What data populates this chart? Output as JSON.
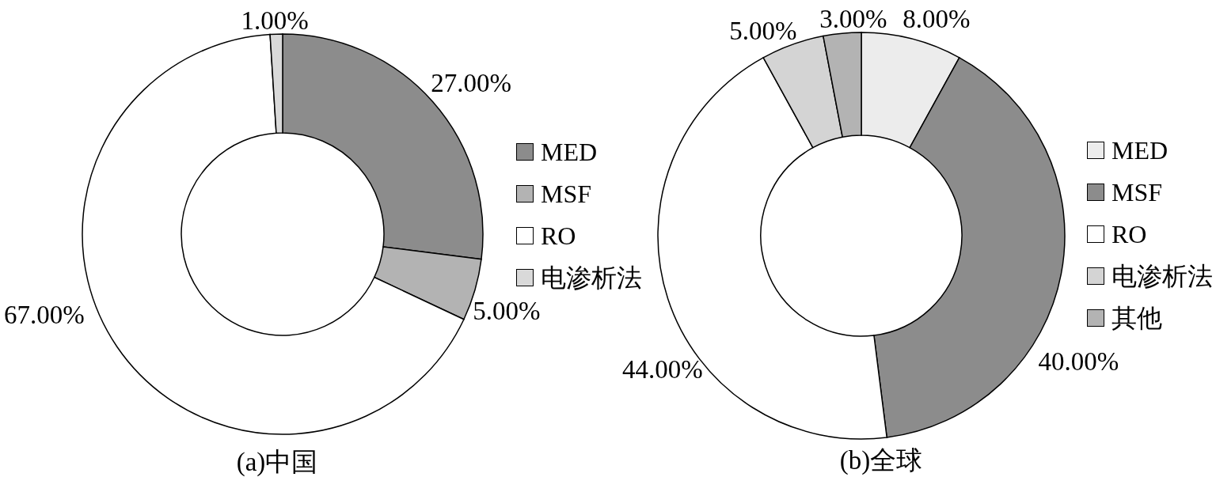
{
  "chart_data": [
    {
      "type": "donut",
      "title": "(a)中国",
      "categories": [
        "MED",
        "MSF",
        "RO",
        "电渗析法"
      ],
      "values": [
        27,
        5,
        67,
        1
      ],
      "colors": [
        "#8c8c8c",
        "#b3b3b3",
        "#ffffff",
        "#d9d9d9"
      ],
      "value_labels": [
        "27.00%",
        "5.00%",
        "67.00%",
        "1.00%"
      ],
      "legend": "right"
    },
    {
      "type": "donut",
      "title": "(b)全球",
      "categories": [
        "MED",
        "MSF",
        "RO",
        "电渗析法",
        "其他"
      ],
      "values": [
        8,
        40,
        44,
        5,
        3
      ],
      "colors": [
        "#ececec",
        "#8c8c8c",
        "#ffffff",
        "#d4d4d4",
        "#b3b3b3"
      ],
      "value_labels": [
        "8.00%",
        "40.00%",
        "44.00%",
        "5.00%",
        "3.00%"
      ],
      "legend": "right"
    }
  ]
}
